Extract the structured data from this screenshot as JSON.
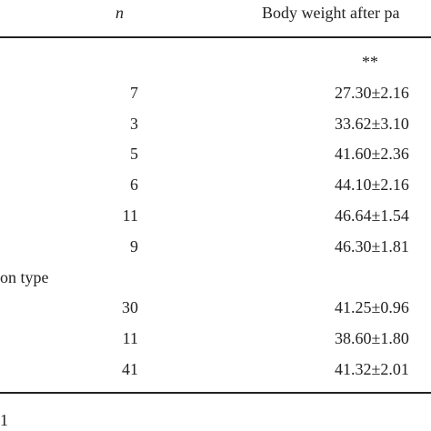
{
  "table": {
    "header": [
      "n",
      "Body weight after pa"
    ],
    "rows": [
      {
        "value": "**"
      },
      {
        "n": "7",
        "value": "27.30±2.16"
      },
      {
        "n": "3",
        "value": "33.62±3.10"
      },
      {
        "n": "5",
        "value": "41.60±2.36"
      },
      {
        "n": "6",
        "value": "44.10±2.16"
      },
      {
        "n": "11",
        "value": "46.64±1.54"
      },
      {
        "n": "9",
        "value": "46.30±1.81"
      },
      {
        "label": "on type"
      },
      {
        "n": "30",
        "value": "41.25±0.96"
      },
      {
        "n": "11",
        "value": "38.60±1.80"
      },
      {
        "n": "41",
        "value": "41.32±2.01"
      }
    ],
    "footnote": "1"
  }
}
